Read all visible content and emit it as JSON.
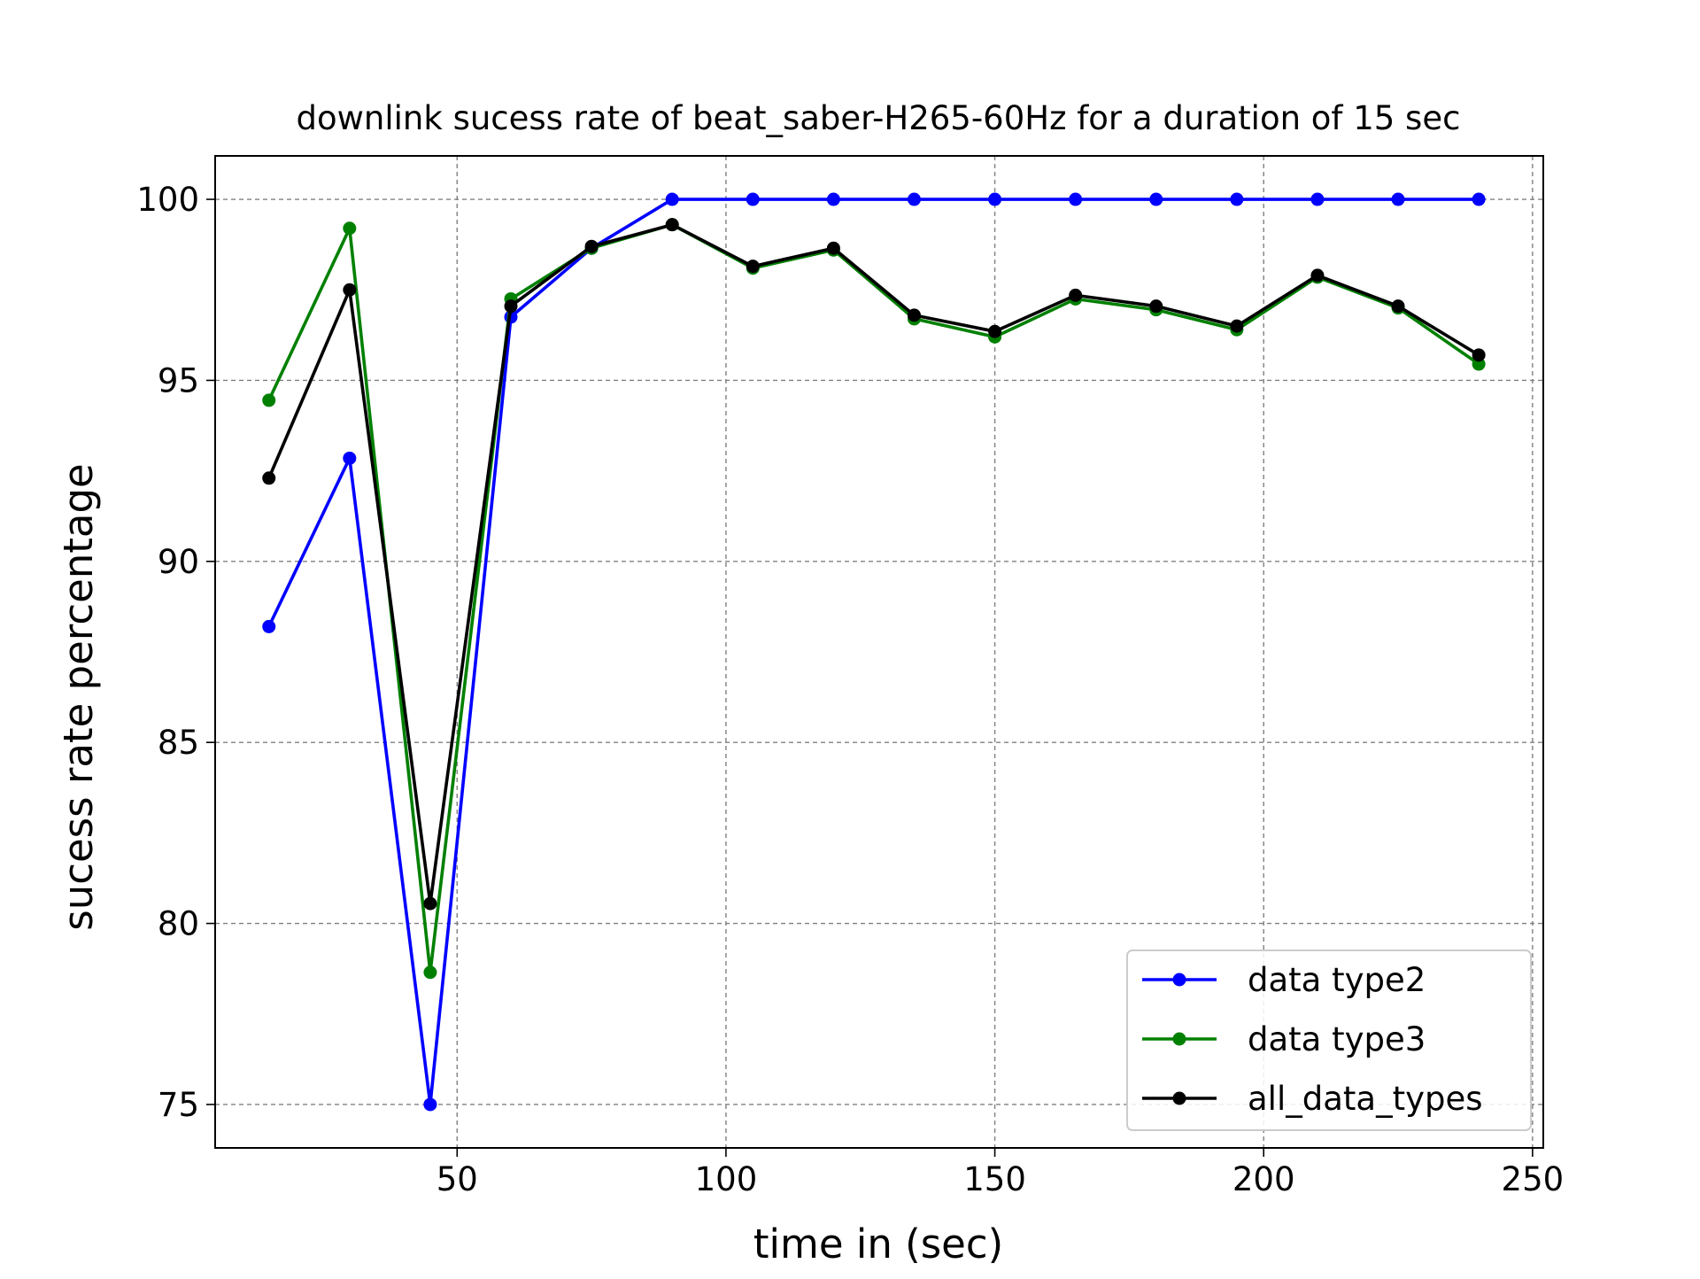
{
  "chart_data": {
    "type": "line",
    "title": "downlink sucess rate of beat_saber-H265-60Hz for a duration of 15 sec",
    "xlabel": "time in (sec)",
    "ylabel": "sucess rate percentage",
    "xlim": [
      5,
      252
    ],
    "ylim": [
      73.8,
      101.2
    ],
    "xticks": [
      50,
      100,
      150,
      200,
      250
    ],
    "yticks": [
      75,
      80,
      85,
      90,
      95,
      100
    ],
    "grid": true,
    "legend_position": "lower right",
    "x": [
      15,
      30,
      45,
      60,
      75,
      90,
      105,
      120,
      135,
      150,
      165,
      180,
      195,
      210,
      225,
      240
    ],
    "series": [
      {
        "name": "data type2",
        "color": "#0000ff",
        "values": [
          88.2,
          92.85,
          75.0,
          96.75,
          98.65,
          100,
          100,
          100,
          100,
          100,
          100,
          100,
          100,
          100,
          100,
          100
        ]
      },
      {
        "name": "data type3",
        "color": "#008000",
        "values": [
          94.45,
          99.2,
          78.65,
          97.25,
          98.65,
          99.3,
          98.1,
          98.6,
          96.7,
          96.2,
          97.25,
          96.95,
          96.4,
          97.85,
          97.0,
          95.45
        ]
      },
      {
        "name": "all_data_types",
        "color": "#000000",
        "values": [
          92.3,
          97.5,
          80.55,
          97.05,
          98.7,
          99.3,
          98.15,
          98.65,
          96.8,
          96.35,
          97.35,
          97.05,
          96.5,
          97.9,
          97.05,
          95.7
        ]
      }
    ]
  }
}
